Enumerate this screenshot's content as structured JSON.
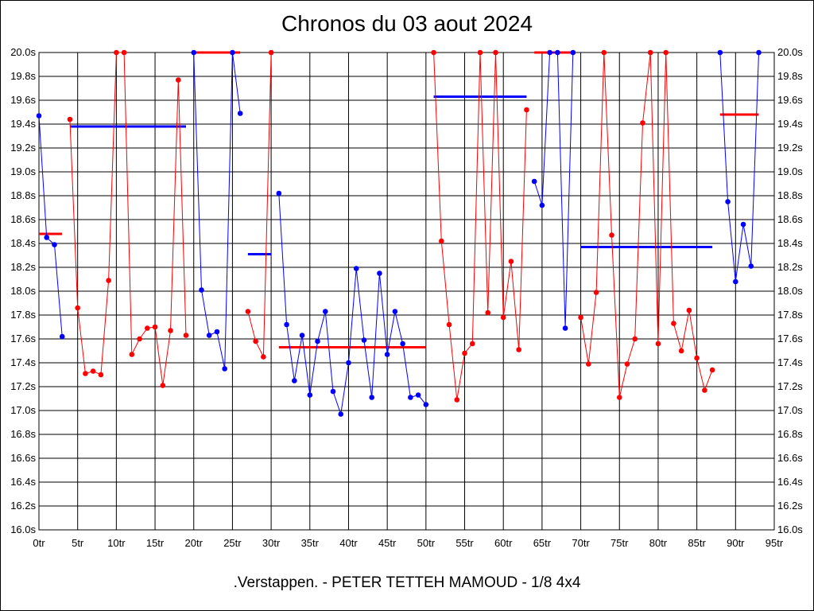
{
  "chart_data": {
    "type": "line",
    "title": "Chronos du 03 aout 2024",
    "footer": ".Verstappen. - PETER TETTEH MAMOUD - 1/8 4x4",
    "xlim": [
      0,
      95
    ],
    "ylim": [
      16.0,
      20.0
    ],
    "x_ticks": [
      0,
      5,
      10,
      15,
      20,
      25,
      30,
      35,
      40,
      45,
      50,
      55,
      60,
      65,
      70,
      75,
      80,
      85,
      90,
      95
    ],
    "x_tick_labels": [
      "0tr",
      "5tr",
      "10tr",
      "15tr",
      "20tr",
      "25tr",
      "30tr",
      "35tr",
      "40tr",
      "45tr",
      "50tr",
      "55tr",
      "60tr",
      "65tr",
      "70tr",
      "75tr",
      "80tr",
      "85tr",
      "90tr",
      "95tr"
    ],
    "y_ticks": [
      16.0,
      16.2,
      16.4,
      16.6,
      16.8,
      17.0,
      17.2,
      17.4,
      17.6,
      17.8,
      18.0,
      18.2,
      18.4,
      18.6,
      18.8,
      19.0,
      19.2,
      19.4,
      19.6,
      19.8,
      20.0
    ],
    "y_tick_labels": [
      "16.0s",
      "16.2s",
      "16.4s",
      "16.6s",
      "16.8s",
      "17.0s",
      "17.2s",
      "17.4s",
      "17.6s",
      "17.8s",
      "18.0s",
      "18.2s",
      "18.4s",
      "18.6s",
      "18.8s",
      "19.0s",
      "19.2s",
      "19.4s",
      "19.6s",
      "19.8s",
      "20.0s"
    ],
    "grid": true,
    "colors": {
      "blue": "#0000ff",
      "red": "#ff0000",
      "grid": "#000000"
    },
    "series": [
      {
        "color": "#0000ff",
        "points": [
          [
            0,
            19.47
          ],
          [
            1,
            18.45
          ],
          [
            2,
            18.39
          ],
          [
            3,
            17.62
          ]
        ]
      },
      {
        "color": "#ff0000",
        "points": [
          [
            4,
            19.44
          ],
          [
            5,
            17.86
          ],
          [
            6,
            17.31
          ],
          [
            7,
            17.33
          ],
          [
            8,
            17.3
          ],
          [
            9,
            18.09
          ],
          [
            10,
            20.0
          ],
          [
            11,
            20.0
          ],
          [
            12,
            17.47
          ],
          [
            13,
            17.6
          ],
          [
            14,
            17.69
          ],
          [
            15,
            17.7
          ],
          [
            16,
            17.21
          ],
          [
            17,
            17.67
          ],
          [
            18,
            19.77
          ],
          [
            19,
            17.63
          ]
        ]
      },
      {
        "color": "#0000ff",
        "points": [
          [
            20,
            20.0
          ],
          [
            21,
            18.01
          ],
          [
            22,
            17.63
          ],
          [
            23,
            17.66
          ],
          [
            24,
            17.35
          ],
          [
            25,
            20.0
          ],
          [
            26,
            19.49
          ]
        ]
      },
      {
        "color": "#ff0000",
        "points": [
          [
            27,
            17.83
          ],
          [
            28,
            17.58
          ],
          [
            29,
            17.45
          ],
          [
            30,
            20.0
          ]
        ]
      },
      {
        "color": "#0000ff",
        "points": [
          [
            31,
            18.82
          ],
          [
            32,
            17.72
          ],
          [
            33,
            17.25
          ],
          [
            34,
            17.63
          ],
          [
            35,
            17.13
          ],
          [
            36,
            17.58
          ],
          [
            37,
            17.83
          ],
          [
            38,
            17.16
          ],
          [
            39,
            16.97
          ],
          [
            40,
            17.4
          ],
          [
            41,
            18.19
          ],
          [
            42,
            17.59
          ],
          [
            43,
            17.11
          ],
          [
            44,
            18.15
          ],
          [
            45,
            17.47
          ],
          [
            46,
            17.83
          ],
          [
            47,
            17.56
          ],
          [
            48,
            17.11
          ],
          [
            49,
            17.13
          ],
          [
            50,
            17.05
          ]
        ]
      },
      {
        "color": "#ff0000",
        "points": [
          [
            51,
            20.0
          ],
          [
            52,
            18.42
          ],
          [
            53,
            17.72
          ],
          [
            54,
            17.09
          ],
          [
            55,
            17.48
          ],
          [
            56,
            17.56
          ],
          [
            57,
            20.0
          ],
          [
            58,
            17.82
          ],
          [
            59,
            20.0
          ],
          [
            60,
            17.78
          ],
          [
            61,
            18.25
          ],
          [
            62,
            17.51
          ],
          [
            63,
            19.52
          ]
        ]
      },
      {
        "color": "#0000ff",
        "points": [
          [
            64,
            18.92
          ],
          [
            65,
            18.72
          ],
          [
            66,
            20.0
          ],
          [
            67,
            20.0
          ],
          [
            68,
            17.69
          ],
          [
            69,
            20.0
          ]
        ]
      },
      {
        "color": "#ff0000",
        "points": [
          [
            70,
            17.78
          ],
          [
            71,
            17.39
          ],
          [
            72,
            17.99
          ],
          [
            73,
            20.0
          ],
          [
            74,
            18.47
          ],
          [
            75,
            17.11
          ],
          [
            76,
            17.39
          ],
          [
            77,
            17.6
          ],
          [
            78,
            19.41
          ],
          [
            79,
            20.0
          ],
          [
            80,
            17.56
          ],
          [
            81,
            20.0
          ],
          [
            82,
            17.73
          ],
          [
            83,
            17.5
          ],
          [
            84,
            17.84
          ],
          [
            85,
            17.44
          ],
          [
            86,
            17.17
          ],
          [
            87,
            17.34
          ]
        ]
      },
      {
        "color": "#0000ff",
        "points": [
          [
            88,
            20.0
          ],
          [
            89,
            18.75
          ],
          [
            90,
            18.08
          ],
          [
            91,
            18.56
          ],
          [
            92,
            18.21
          ],
          [
            93,
            20.0
          ]
        ]
      }
    ],
    "averages": [
      {
        "color": "#ff0000",
        "x": [
          0,
          3
        ],
        "y": 18.48
      },
      {
        "color": "#0000ff",
        "x": [
          4,
          19
        ],
        "y": 19.38
      },
      {
        "color": "#ff0000",
        "x": [
          20,
          26
        ],
        "y": 20.0
      },
      {
        "color": "#0000ff",
        "x": [
          27,
          30
        ],
        "y": 18.31
      },
      {
        "color": "#ff0000",
        "x": [
          31,
          50
        ],
        "y": 17.53
      },
      {
        "color": "#0000ff",
        "x": [
          51,
          63
        ],
        "y": 19.63
      },
      {
        "color": "#ff0000",
        "x": [
          64,
          69
        ],
        "y": 20.0
      },
      {
        "color": "#0000ff",
        "x": [
          70,
          87
        ],
        "y": 18.37
      },
      {
        "color": "#ff0000",
        "x": [
          88,
          93
        ],
        "y": 19.48
      }
    ]
  }
}
